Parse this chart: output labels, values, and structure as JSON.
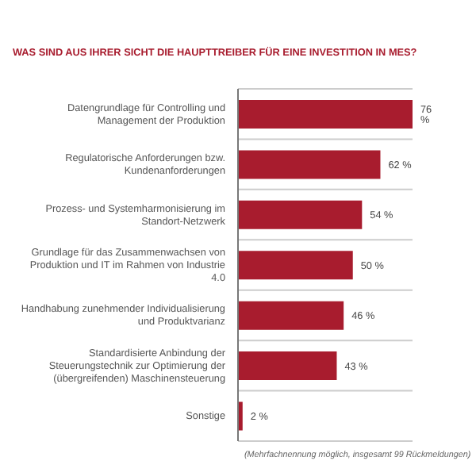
{
  "chart_data": {
    "type": "bar",
    "orientation": "horizontal",
    "title": "WAS SIND AUS IHRER SICHT DIE HAUPTTREIBER FÜR EINE INVESTITION IN MES?",
    "categories": [
      "Datengrundlage für Controlling und Management der Produktion",
      "Regulatorische Anforderungen bzw. Kundenanforderungen",
      "Prozess- und Systemharmonisierung im Standort-Netzwerk",
      "Grundlage für das Zusammenwachsen von Produktion und IT im Rahmen von Industrie 4.0",
      "Handhabung zunehmender Individualisierung und Produktvarianz",
      "Standardisierte Anbindung der Steuerungstechnik zur Optimierung der (übergreifenden) Maschinensteuerung",
      "Sonstige"
    ],
    "values": [
      76,
      62,
      54,
      50,
      46,
      43,
      2
    ],
    "value_labels": [
      "76 %",
      "62 %",
      "54 %",
      "50 %",
      "46 %",
      "43 %",
      "2 %"
    ],
    "color": "#a81c2e",
    "grid": "y",
    "annotations": [
      "(Mehrfachnennung möglich, insgesamt 99 Rückmeldungen)"
    ]
  }
}
